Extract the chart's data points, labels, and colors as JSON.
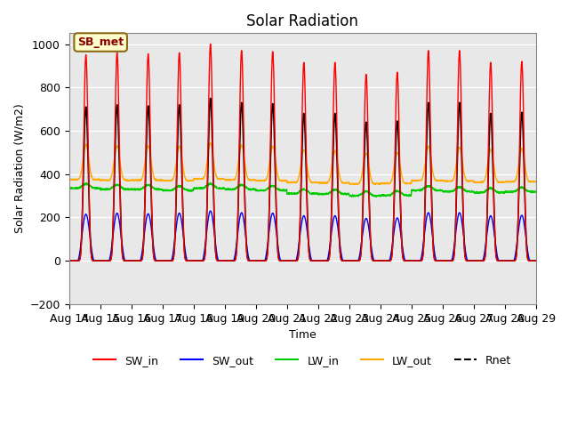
{
  "title": "Solar Radiation",
  "ylabel": "Solar Radiation (W/m2)",
  "xlabel": "Time",
  "ylim": [
    -200,
    1050
  ],
  "background_color": "#e8e8e8",
  "annotation_text": "SB_met",
  "annotation_bg": "#ffffcc",
  "annotation_border": "#8B6914",
  "x_tick_labels": [
    "Aug 14",
    "Aug 15",
    "Aug 16",
    "Aug 17",
    "Aug 18",
    "Aug 19",
    "Aug 20",
    "Aug 21",
    "Aug 22",
    "Aug 23",
    "Aug 24",
    "Aug 25",
    "Aug 26",
    "Aug 27",
    "Aug 28",
    "Aug 29"
  ],
  "legend_labels": [
    "SW_in",
    "SW_out",
    "LW_in",
    "LW_out",
    "Rnet"
  ],
  "legend_colors": [
    "#ff0000",
    "#0000ff",
    "#00cc00",
    "#ffaa00",
    "#000000"
  ],
  "num_days": 15,
  "points_per_day": 144,
  "sw_in_peaks": [
    950,
    960,
    955,
    960,
    1000,
    970,
    965,
    915,
    915,
    860,
    870,
    970,
    970,
    915,
    920
  ],
  "rnet_peaks": [
    710,
    720,
    715,
    720,
    750,
    730,
    725,
    680,
    680,
    640,
    645,
    730,
    730,
    680,
    685
  ],
  "sw_out_peaks": [
    215,
    220,
    217,
    220,
    230,
    222,
    220,
    208,
    208,
    196,
    198,
    222,
    222,
    208,
    210
  ],
  "lw_in_base": [
    335,
    330,
    330,
    325,
    335,
    330,
    325,
    310,
    308,
    300,
    302,
    325,
    320,
    315,
    318
  ],
  "lw_out_base": [
    375,
    372,
    372,
    370,
    378,
    373,
    370,
    362,
    360,
    355,
    357,
    370,
    368,
    363,
    365
  ],
  "lw_out_peak_add": [
    130,
    128,
    128,
    128,
    135,
    130,
    128,
    120,
    118,
    110,
    112,
    128,
    126,
    120,
    122
  ]
}
